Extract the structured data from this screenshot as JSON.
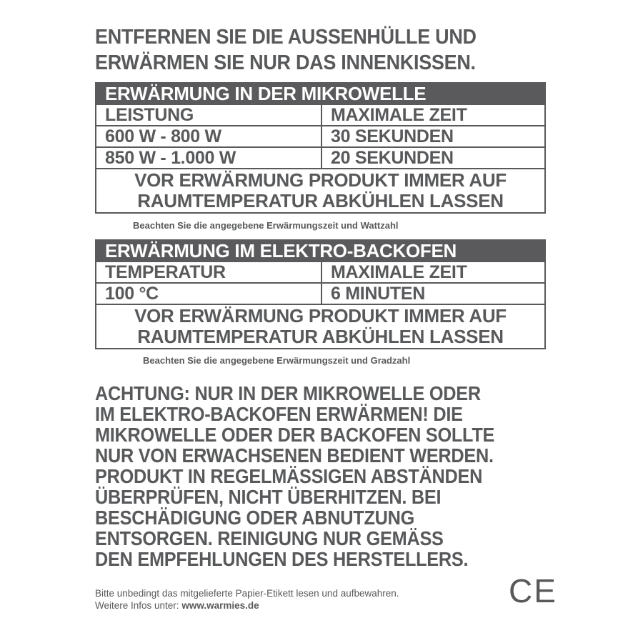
{
  "headline": [
    "ENTFERNEN SIE DIE AUSSENHÜLLE UND",
    "ERWÄRMEN SIE NUR DAS INNENKISSEN."
  ],
  "microwave": {
    "title": "ERWÄRMUNG IN DER MIKROWELLE",
    "columns": [
      "LEISTUNG",
      "MAXIMALE ZEIT"
    ],
    "rows": [
      [
        "600 W - 800 W",
        "30 SEKUNDEN"
      ],
      [
        "850 W - 1.000 W",
        "20 SEKUNDEN"
      ]
    ],
    "note": [
      "VOR ERWÄRMUNG PRODUKT IMMER AUF",
      "RAUMTEMPERATUR ABKÜHLEN LASSEN"
    ],
    "caption": "Beachten Sie die angegebene Erwärmungszeit und Wattzahl"
  },
  "oven": {
    "title": "ERWÄRMUNG IM ELEKTRO-BACKOFEN",
    "columns": [
      "TEMPERATUR",
      "MAXIMALE ZEIT"
    ],
    "rows": [
      [
        "100 °C",
        "6 MINUTEN"
      ]
    ],
    "note": [
      "VOR ERWÄRMUNG PRODUKT IMMER AUF",
      "RAUMTEMPERATUR ABKÜHLEN LASSEN"
    ],
    "caption": "Beachten Sie die angegebene Erwärmungszeit und Gradzahl"
  },
  "warning": [
    "ACHTUNG: NUR IN DER MIKROWELLE ODER",
    "IM ELEKTRO-BACKOFEN ERWÄRMEN! DIE",
    "MIKROWELLE ODER DER BACKOFEN SOLLTE",
    "NUR VON ERWACHSENEN BEDIENT WERDEN.",
    "PRODUKT IN REGELMÄSSIGEN ABSTÄNDEN",
    "ÜBERPRÜFEN, NICHT ÜBERHITZEN. BEI",
    "BESCHÄDIGUNG ODER ABNUTZUNG",
    "ENTSORGEN. REINIGUNG NUR GEMÄSS",
    "DEN EMPFEHLUNGEN DES HERSTELLERS."
  ],
  "footer": {
    "line1": "Bitte unbedingt das mitgelieferte Papier-Etikett lesen und aufbewahren.",
    "line2_prefix": "Weitere Infos unter: ",
    "website": "www.warmies.de"
  },
  "ce_mark": "CE",
  "colors": {
    "text": "#58595b",
    "header_bg": "#5a5a5c"
  }
}
